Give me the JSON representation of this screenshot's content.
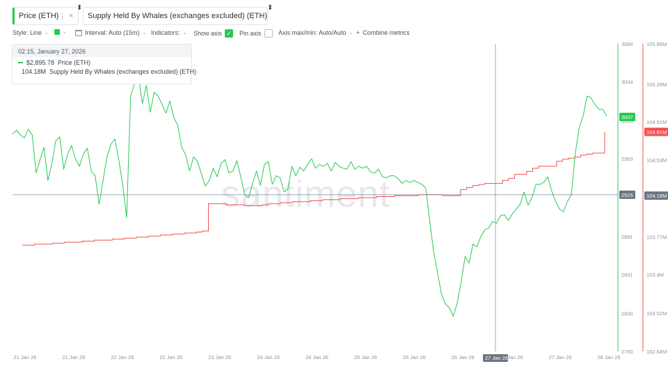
{
  "tabs": [
    {
      "label": "Price (ETH)",
      "color": "#26c953",
      "menu_icon": "vertical-dots-icon",
      "close_icon": "close-icon",
      "close": "×",
      "menu": "⋮"
    },
    {
      "label": "Supply Held By Whales (exchanges excluded) (ETH)",
      "color": "#f0504f",
      "menu_icon": "vertical-dots-icon",
      "close_icon": "close-icon",
      "close": "×",
      "menu": "⋮"
    }
  ],
  "toolbar": {
    "style_label": "Style: Line",
    "interval_label": "Interval: Auto (15m)",
    "indicators_label": "Indicators:",
    "show_axis_label": "Show axis",
    "show_axis_checked": true,
    "pin_axis_label": "Pin axis",
    "pin_axis_checked": false,
    "axis_label": "Axis max/min: Auto/Auto",
    "combine_label": "Combine metrics",
    "plus": "+",
    "check": "✓",
    "chevron": "⌄"
  },
  "tooltip": {
    "date": "02:15, January 27, 2026",
    "rows": [
      {
        "value": "$2,895.78",
        "metric": "Price (ETH)",
        "color": "#26c953"
      },
      {
        "value": "104.18M",
        "metric": "Supply Held By Whales (exchanges excluded) (ETH)",
        "color": "#f0504f"
      }
    ]
  },
  "watermark": "santiment",
  "chart_data": {
    "type": "line",
    "x_ticks": [
      "21 Jan 26",
      "21 Jan 26",
      "22 Jan 26",
      "22 Jan 26",
      "23 Jan 26",
      "24 Jan 26",
      "24 Jan 26",
      "25 Jan 26",
      "26 Jan 26",
      "26 Jan 26",
      "27 Jan 26",
      "27 Jan 26",
      "28 Jan 26"
    ],
    "x_range": [
      "21 Jan 26",
      "28 Jan 26"
    ],
    "price_axis": {
      "ticks": [
        "3084",
        "3044",
        "3003",
        "2963",
        "2881",
        "2841",
        "2800",
        "2760"
      ],
      "ylim": [
        2760,
        3084
      ]
    },
    "supply_axis": {
      "ticks": [
        "105.68M",
        "105.28M",
        "104.91M",
        "104.53M",
        "103.77M",
        "103.4M",
        "103.02M",
        "102.64M"
      ],
      "ylim": [
        102.64,
        105.68
      ]
    },
    "badges": {
      "price_current": "3007",
      "price_crosshair": "2925",
      "supply_current": "104.81M",
      "supply_crosshair": "104.18M",
      "crosshair_date": "27 Jan 26"
    },
    "series": [
      {
        "name": "Price (ETH)",
        "color": "#26c953",
        "values": [
          2989,
          2993,
          2988,
          2985,
          2994,
          2988,
          2948,
          2962,
          2975,
          2940,
          2958,
          2982,
          2986,
          2952,
          2968,
          2977,
          2963,
          2955,
          2968,
          2974,
          2950,
          2945,
          2915,
          2940,
          2965,
          2978,
          2984,
          2962,
          2935,
          2901,
          3029,
          3042,
          3050,
          3021,
          3040,
          3012,
          3033,
          3029,
          3020,
          3011,
          3024,
          3006,
          2998,
          2975,
          2967,
          2950,
          2965,
          2960,
          2947,
          2934,
          2940,
          2953,
          2944,
          2958,
          2962,
          2948,
          2950,
          2961,
          2944,
          2925,
          2922,
          2937,
          2950,
          2935,
          2957,
          2960,
          2936,
          2945,
          2943,
          2928,
          2931,
          2955,
          2945,
          2954,
          2950,
          2957,
          2963,
          2953,
          2957,
          2955,
          2958,
          2950,
          2959,
          2955,
          2953,
          2952,
          2960,
          2952,
          2955,
          2953,
          2955,
          2949,
          2948,
          2952,
          2944,
          2943,
          2945,
          2945,
          2942,
          2937,
          2940,
          2938,
          2940,
          2938,
          2936,
          2932,
          2898,
          2865,
          2843,
          2820,
          2810,
          2806,
          2797,
          2811,
          2833,
          2860,
          2853,
          2873,
          2870,
          2881,
          2888,
          2890,
          2897,
          2895,
          2903,
          2904,
          2898,
          2905,
          2910,
          2915,
          2928,
          2914,
          2922,
          2936,
          2936,
          2938,
          2944,
          2929,
          2918,
          2910,
          2907,
          2918,
          2925,
          2969,
          2996,
          3008,
          3029,
          3027,
          3020,
          3015,
          3015,
          3008
        ]
      },
      {
        "name": "Supply Held By Whales (exchanges excluded) (ETH)",
        "color": "#f0504f",
        "values": [
          103.69,
          103.69,
          103.7,
          103.7,
          103.7,
          103.71,
          103.71,
          103.72,
          103.72,
          103.72,
          103.73,
          103.73,
          103.74,
          103.74,
          103.74,
          103.75,
          103.75,
          103.76,
          103.76,
          103.77,
          103.77,
          103.78,
          103.78,
          103.79,
          103.79,
          103.8,
          103.8,
          103.81,
          103.81,
          103.82,
          103.83,
          104.1,
          104.1,
          104.1,
          104.09,
          104.09,
          104.09,
          104.08,
          104.08,
          104.08,
          104.09,
          104.1,
          104.1,
          104.11,
          104.11,
          104.12,
          104.12,
          104.12,
          104.13,
          104.13,
          104.14,
          104.14,
          104.14,
          104.15,
          104.15,
          104.15,
          104.16,
          104.16,
          104.16,
          104.17,
          104.17,
          104.17,
          104.18,
          104.18,
          104.18,
          104.18,
          104.19,
          104.19,
          104.19,
          104.19,
          104.18,
          104.18,
          104.18,
          104.24,
          104.26,
          104.28,
          104.29,
          104.3,
          104.3,
          104.3,
          104.33,
          104.35,
          104.39,
          104.39,
          104.42,
          104.45,
          104.47,
          104.47,
          104.47,
          104.52,
          104.54,
          104.55,
          104.56,
          104.58,
          104.59,
          104.6,
          104.6,
          104.81
        ]
      }
    ]
  }
}
